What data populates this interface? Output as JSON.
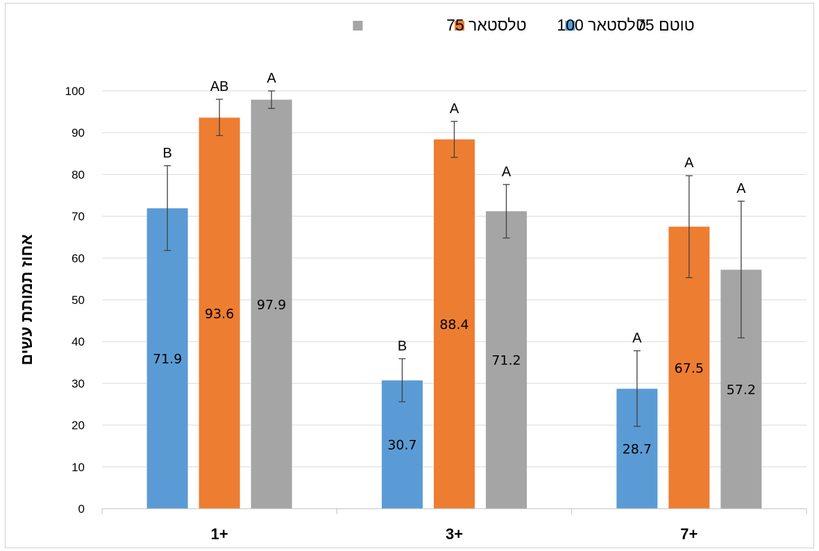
{
  "chart_data": {
    "type": "bar",
    "title": "",
    "xlabel": "",
    "ylabel": "אחוז תמותת עשים",
    "ylim": [
      0,
      100
    ],
    "yticks": [
      0,
      10,
      20,
      30,
      40,
      50,
      60,
      70,
      80,
      90,
      100
    ],
    "grid": true,
    "legend_position": "top",
    "categories": [
      "1+",
      "3+",
      "7+"
    ],
    "series": [
      {
        "name": "טוטם 75",
        "color": "#5b9bd5",
        "values": [
          71.9,
          30.7,
          28.7
        ],
        "error_low": [
          61.8,
          25.6,
          19.7
        ],
        "error_high": [
          82.1,
          35.9,
          37.8
        ],
        "sig": [
          "B",
          "B",
          "A"
        ]
      },
      {
        "name": "טלסטאר 100",
        "color": "#ed7d31",
        "values": [
          93.6,
          88.4,
          67.5
        ],
        "error_low": [
          89.3,
          84.1,
          55.3
        ],
        "error_high": [
          98.0,
          92.7,
          79.7
        ],
        "sig": [
          "AB",
          "A",
          "A"
        ]
      },
      {
        "name": "טלסטאר 75",
        "color": "#a5a5a5",
        "values": [
          97.9,
          71.2,
          57.2
        ],
        "error_low": [
          95.8,
          64.8,
          40.9
        ],
        "error_high": [
          100.0,
          77.6,
          73.6
        ],
        "sig": [
          "A",
          "A",
          "A"
        ]
      }
    ],
    "colors": {
      "grid": "#d9d9d9",
      "axis": "#bfbfbf",
      "error_bar": "#404040"
    }
  }
}
